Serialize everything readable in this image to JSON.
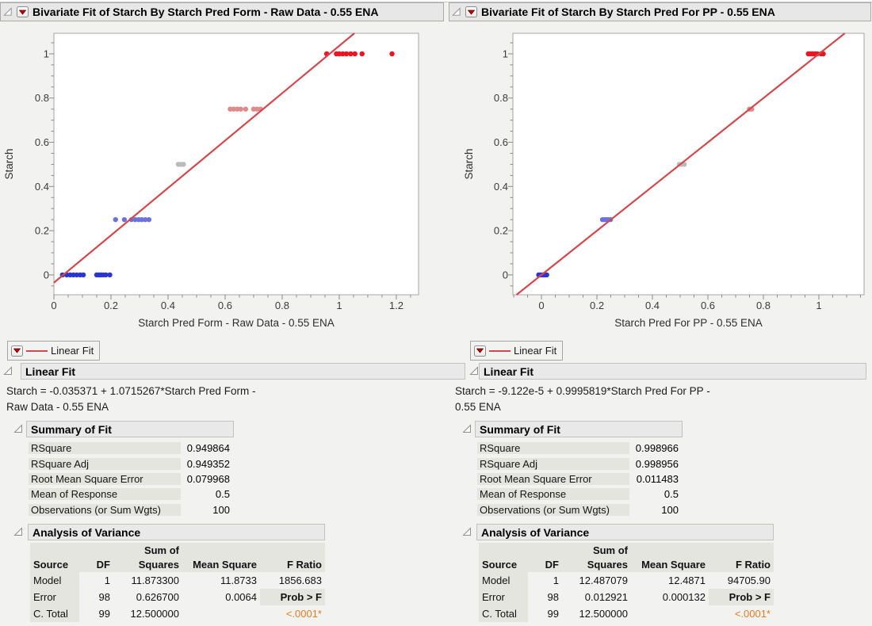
{
  "colors": {
    "fit_line_red": "#d2494d",
    "significance_orange": "#df7d20",
    "menu_triangle_red": "#c40000",
    "point_blue_000": "#2c36cd",
    "point_blue_025": "#6b73d8",
    "point_gray_050": "#bbbbbb",
    "point_salmon_075": "#de8b8b",
    "point_red_100": "#f21220"
  },
  "panels": {
    "left": {
      "title": "Bivariate Fit of Starch By Starch Pred Form - Raw Data - 0.55 ENA",
      "legend_label": "Linear Fit",
      "fit_section_title": "Linear Fit",
      "equation_line1": "Starch = -0.035371 + 1.0715267*Starch Pred Form -",
      "equation_line2": "Raw Data - 0.55 ENA",
      "summary": {
        "title": "Summary of Fit",
        "rows": [
          {
            "label": "RSquare",
            "value": "0.949864"
          },
          {
            "label": "RSquare Adj",
            "value": "0.949352"
          },
          {
            "label": "Root Mean Square Error",
            "value": "0.079968"
          },
          {
            "label": "Mean of Response",
            "value": "0.5"
          },
          {
            "label": "Observations (or Sum Wgts)",
            "value": "100"
          }
        ]
      },
      "anova": {
        "title": "Analysis of Variance",
        "headers": {
          "source": "Source",
          "df": "DF",
          "sum_of": "Sum of",
          "squares": "Squares",
          "mean_square": "Mean Square",
          "f_ratio": "F Ratio"
        },
        "rows": [
          {
            "source": "Model",
            "df": "1",
            "sum_of_squares": "11.873300",
            "mean_square": "11.8733",
            "f_ratio": "1856.683"
          },
          {
            "source": "Error",
            "df": "98",
            "sum_of_squares": "0.626700",
            "mean_square": "0.0064",
            "f_ratio": "Prob > F"
          },
          {
            "source": "C. Total",
            "df": "99",
            "sum_of_squares": "12.500000",
            "mean_square": "",
            "f_ratio": "<.0001*"
          }
        ]
      }
    },
    "right": {
      "title": "Bivariate Fit of Starch By Starch Pred For PP - 0.55 ENA",
      "legend_label": "Linear Fit",
      "fit_section_title": "Linear Fit",
      "equation_line1": "Starch = -9.122e-5 + 0.9995819*Starch Pred For PP -",
      "equation_line2": "0.55 ENA",
      "summary": {
        "title": "Summary of Fit",
        "rows": [
          {
            "label": "RSquare",
            "value": "0.998966"
          },
          {
            "label": "RSquare Adj",
            "value": "0.998956"
          },
          {
            "label": "Root Mean Square Error",
            "value": "0.011483"
          },
          {
            "label": "Mean of Response",
            "value": "0.5"
          },
          {
            "label": "Observations (or Sum Wgts)",
            "value": "100"
          }
        ]
      },
      "anova": {
        "title": "Analysis of Variance",
        "headers": {
          "source": "Source",
          "df": "DF",
          "sum_of": "Sum of",
          "squares": "Squares",
          "mean_square": "Mean Square",
          "f_ratio": "F Ratio"
        },
        "rows": [
          {
            "source": "Model",
            "df": "1",
            "sum_of_squares": "12.487079",
            "mean_square": "12.4871",
            "f_ratio": "94705.90"
          },
          {
            "source": "Error",
            "df": "98",
            "sum_of_squares": "0.012921",
            "mean_square": "0.000132",
            "f_ratio": "Prob > F"
          },
          {
            "source": "C. Total",
            "df": "99",
            "sum_of_squares": "12.500000",
            "mean_square": "",
            "f_ratio": "<.0001*"
          }
        ]
      }
    }
  },
  "chart_data": [
    {
      "type": "scatter",
      "title": "Bivariate Fit of Starch By Starch Pred Form - Raw Data - 0.55 ENA",
      "xlabel": "Starch Pred Form - Raw Data - 0.55 ENA",
      "ylabel": "Starch",
      "xlim": [
        0,
        1.278
      ],
      "ylim": [
        -0.09,
        1.093
      ],
      "x_ticks": [
        0,
        0.2,
        0.4,
        0.6,
        0.8,
        1,
        1.2
      ],
      "y_ticks": [
        0,
        0.2,
        0.4,
        0.6,
        0.8,
        1
      ],
      "minor_tick_step": 0.05,
      "grid": false,
      "legend": "Linear Fit",
      "fit_line": {
        "label": "Linear Fit",
        "intercept": -0.035371,
        "slope": 1.0715267,
        "color": "#d2494d"
      },
      "series": [
        {
          "name": "starch-0.00",
          "color": "#2c36cd",
          "y": 0,
          "x": [
            0.03,
            0.045,
            0.057,
            0.068,
            0.08,
            0.092,
            0.103,
            0.15,
            0.158,
            0.165,
            0.173,
            0.182,
            0.196
          ]
        },
        {
          "name": "starch-0.25",
          "color": "#6b73d8",
          "y": 0.25,
          "x": [
            0.216,
            0.247,
            0.272,
            0.285,
            0.297,
            0.308,
            0.32,
            0.333
          ]
        },
        {
          "name": "starch-0.50",
          "color": "#bbbbbb",
          "y": 0.5,
          "x": [
            0.436,
            0.445,
            0.454
          ]
        },
        {
          "name": "starch-0.75",
          "color": "#de8b8b",
          "y": 0.75,
          "x": [
            0.618,
            0.63,
            0.643,
            0.655,
            0.672,
            0.7,
            0.712,
            0.724
          ]
        },
        {
          "name": "starch-1.00",
          "color": "#f21220",
          "y": 1,
          "x": [
            0.956,
            0.99,
            1.0,
            1.012,
            1.025,
            1.04,
            1.055,
            1.08,
            1.185
          ]
        }
      ]
    },
    {
      "type": "scatter",
      "title": "Bivariate Fit of Starch By Starch Pred For PP - 0.55 ENA",
      "xlabel": "Starch Pred For PP - 0.55 ENA",
      "ylabel": "Starch",
      "xlim": [
        -0.103,
        1.163
      ],
      "ylim": [
        -0.09,
        1.093
      ],
      "x_ticks": [
        0,
        0.2,
        0.4,
        0.6,
        0.8,
        1
      ],
      "y_ticks": [
        0,
        0.2,
        0.4,
        0.6,
        0.8,
        1
      ],
      "minor_tick_step": 0.05,
      "grid": false,
      "legend": "Linear Fit",
      "fit_line": {
        "label": "Linear Fit",
        "intercept": -9.122e-05,
        "slope": 0.9995819,
        "color": "#d2494d"
      },
      "series": [
        {
          "name": "starch-0.00",
          "color": "#2c36cd",
          "y": 0,
          "x": [
            -0.01,
            -0.005,
            0.0,
            0.004,
            0.009,
            0.014,
            0.019
          ]
        },
        {
          "name": "starch-0.25",
          "color": "#6b73d8",
          "y": 0.25,
          "x": [
            0.22,
            0.227,
            0.234,
            0.241,
            0.249
          ]
        },
        {
          "name": "starch-0.50",
          "color": "#bbbbbb",
          "y": 0.5,
          "x": [
            0.497,
            0.506,
            0.515
          ]
        },
        {
          "name": "starch-0.75",
          "color": "#de8b8b",
          "y": 0.75,
          "x": [
            0.75,
            0.758
          ]
        },
        {
          "name": "starch-1.00",
          "color": "#f21220",
          "y": 1,
          "x": [
            0.962,
            0.97,
            0.978,
            0.986,
            0.994,
            1.008,
            1.016
          ]
        }
      ]
    }
  ]
}
